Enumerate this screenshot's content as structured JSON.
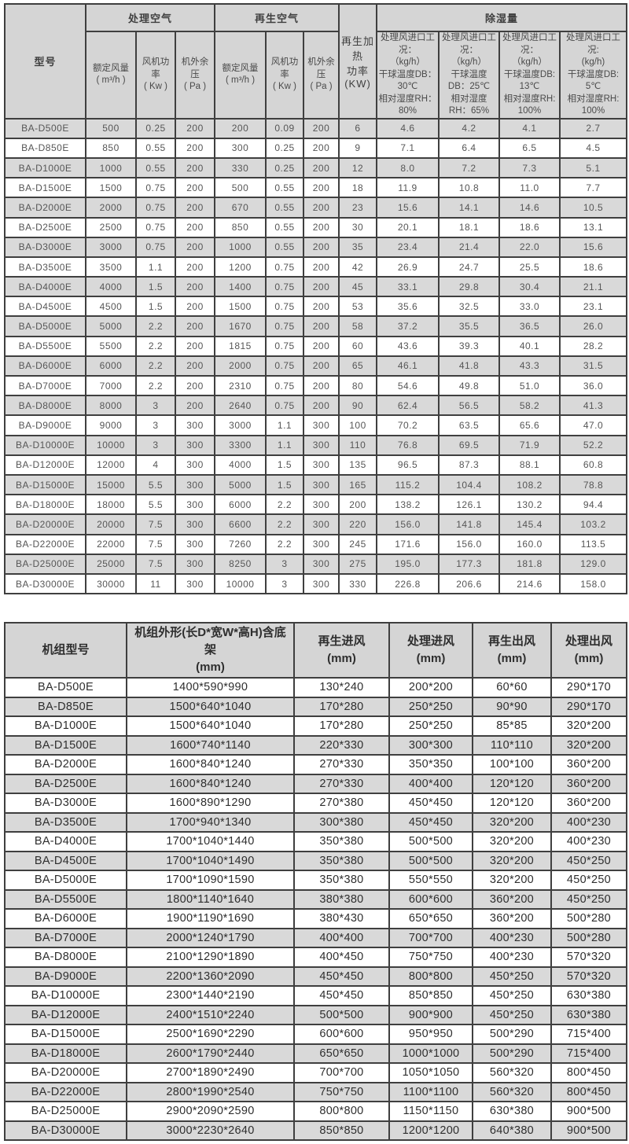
{
  "colors": {
    "header_bg": "#d5d5d5",
    "row_stripe": "#d9d9d9",
    "border": "#3f3f3f",
    "text_primary": "#2e2e2e",
    "text_secondary": "#565656"
  },
  "table1": {
    "header": {
      "model": "型号",
      "process_air": "处理空气",
      "regen_air": "再生空气",
      "regen_heating_power": "再生加热\n功率\n(KW)",
      "dehumidification": "除湿量",
      "sub": [
        "额定风量\n( m³/h )",
        "风机功率\n( Kw )",
        "机外余压\n( Pa )",
        "额定风量\n( m³/h )",
        "风机功率\n( Kw )",
        "机外余压\n( Pa )"
      ],
      "conditions": [
        "处理风进口工况：\n（kg/h）\n干球温度DB：30℃\n相对湿度RH：80%",
        "处理风进口工况：\n（kg/h）\n干球温度DB：25℃\n相对湿度RH：65%",
        "处理风进口工况：\n（kg/h）\n干球温度DB: 13℃\n相对湿度RH: 100%",
        "处理风进口工况:\n(kg/h)\n干球温度DB: 5℃\n相对湿度RH: 100%"
      ]
    },
    "rows": [
      [
        "BA-D500E",
        "500",
        "0.25",
        "200",
        "200",
        "0.09",
        "200",
        "6",
        "4.6",
        "4.2",
        "4.1",
        "2.7"
      ],
      [
        "BA-D850E",
        "850",
        "0.55",
        "200",
        "300",
        "0.25",
        "200",
        "9",
        "7.1",
        "6.4",
        "6.5",
        "4.5"
      ],
      [
        "BA-D1000E",
        "1000",
        "0.55",
        "200",
        "330",
        "0.25",
        "200",
        "12",
        "8.0",
        "7.2",
        "7.3",
        "5.1"
      ],
      [
        "BA-D1500E",
        "1500",
        "0.75",
        "200",
        "500",
        "0.55",
        "200",
        "18",
        "11.9",
        "10.8",
        "11.0",
        "7.7"
      ],
      [
        "BA-D2000E",
        "2000",
        "0.75",
        "200",
        "670",
        "0.55",
        "200",
        "23",
        "15.6",
        "14.1",
        "14.6",
        "10.5"
      ],
      [
        "BA-D2500E",
        "2500",
        "0.75",
        "200",
        "850",
        "0.55",
        "200",
        "30",
        "20.1",
        "18.1",
        "18.6",
        "13.1"
      ],
      [
        "BA-D3000E",
        "3000",
        "0.75",
        "200",
        "1000",
        "0.55",
        "200",
        "35",
        "23.4",
        "21.4",
        "22.0",
        "15.6"
      ],
      [
        "BA-D3500E",
        "3500",
        "1.1",
        "200",
        "1200",
        "0.75",
        "200",
        "42",
        "26.9",
        "24.7",
        "25.5",
        "18.6"
      ],
      [
        "BA-D4000E",
        "4000",
        "1.5",
        "200",
        "1400",
        "0.75",
        "200",
        "45",
        "33.1",
        "29.8",
        "30.4",
        "21.1"
      ],
      [
        "BA-D4500E",
        "4500",
        "1.5",
        "200",
        "1500",
        "0.75",
        "200",
        "53",
        "35.6",
        "32.5",
        "33.0",
        "23.1"
      ],
      [
        "BA-D5000E",
        "5000",
        "2.2",
        "200",
        "1670",
        "0.75",
        "200",
        "58",
        "37.2",
        "35.5",
        "36.5",
        "26.0"
      ],
      [
        "BA-D5500E",
        "5500",
        "2.2",
        "200",
        "1815",
        "0.75",
        "200",
        "60",
        "43.6",
        "39.3",
        "40.1",
        "28.2"
      ],
      [
        "BA-D6000E",
        "6000",
        "2.2",
        "200",
        "2000",
        "0.75",
        "200",
        "65",
        "46.1",
        "41.8",
        "43.3",
        "31.5"
      ],
      [
        "BA-D7000E",
        "7000",
        "2.2",
        "200",
        "2310",
        "0.75",
        "200",
        "80",
        "54.6",
        "49.8",
        "51.0",
        "36.0"
      ],
      [
        "BA-D8000E",
        "8000",
        "3",
        "200",
        "2640",
        "0.75",
        "200",
        "90",
        "62.4",
        "56.5",
        "58.2",
        "41.3"
      ],
      [
        "BA-D9000E",
        "9000",
        "3",
        "300",
        "3000",
        "1.1",
        "300",
        "100",
        "70.2",
        "63.5",
        "65.6",
        "47.0"
      ],
      [
        "BA-D10000E",
        "10000",
        "3",
        "300",
        "3300",
        "1.1",
        "300",
        "110",
        "76.8",
        "69.5",
        "71.9",
        "52.2"
      ],
      [
        "BA-D12000E",
        "12000",
        "4",
        "300",
        "4000",
        "1.5",
        "300",
        "135",
        "96.5",
        "87.3",
        "88.1",
        "60.8"
      ],
      [
        "BA-D15000E",
        "15000",
        "5.5",
        "300",
        "5000",
        "1.5",
        "300",
        "165",
        "115.2",
        "104.4",
        "108.2",
        "78.8"
      ],
      [
        "BA-D18000E",
        "18000",
        "5.5",
        "300",
        "6000",
        "2.2",
        "300",
        "200",
        "138.2",
        "126.1",
        "130.2",
        "94.4"
      ],
      [
        "BA-D20000E",
        "20000",
        "7.5",
        "300",
        "6600",
        "2.2",
        "300",
        "220",
        "156.0",
        "141.8",
        "145.4",
        "103.2"
      ],
      [
        "BA-D22000E",
        "22000",
        "7.5",
        "300",
        "7260",
        "2.2",
        "300",
        "245",
        "171.6",
        "156.0",
        "160.0",
        "113.5"
      ],
      [
        "BA-D25000E",
        "25000",
        "7.5",
        "300",
        "8250",
        "3",
        "300",
        "275",
        "195.0",
        "177.3",
        "181.8",
        "129.0"
      ],
      [
        "BA-D30000E",
        "30000",
        "11",
        "300",
        "10000",
        "3",
        "300",
        "330",
        "226.8",
        "206.6",
        "214.6",
        "158.0"
      ]
    ]
  },
  "table2": {
    "header": [
      "机组型号",
      "机组外形(长D*宽W*高H)含底架\n(mm)",
      "再生进风\n(mm)",
      "处理进风\n(mm)",
      "再生出风\n(mm)",
      "处理出风\n(mm)"
    ],
    "rows": [
      [
        "BA-D500E",
        "1400*590*990",
        "130*240",
        "200*200",
        "60*60",
        "290*170"
      ],
      [
        "BA-D850E",
        "1500*640*1040",
        "170*280",
        "250*250",
        "90*90",
        "290*170"
      ],
      [
        "BA-D1000E",
        "1500*640*1040",
        "170*280",
        "250*250",
        "85*85",
        "320*200"
      ],
      [
        "BA-D1500E",
        "1600*740*1140",
        "220*330",
        "300*300",
        "110*110",
        "320*200"
      ],
      [
        "BA-D2000E",
        "1600*840*1240",
        "270*330",
        "350*350",
        "100*100",
        "360*200"
      ],
      [
        "BA-D2500E",
        "1600*840*1240",
        "270*330",
        "400*400",
        "120*120",
        "360*200"
      ],
      [
        "BA-D3000E",
        "1600*890*1290",
        "270*380",
        "450*450",
        "120*120",
        "360*200"
      ],
      [
        "BA-D3500E",
        "1700*940*1340",
        "300*380",
        "450*450",
        "320*200",
        "400*230"
      ],
      [
        "BA-D4000E",
        "1700*1040*1440",
        "350*380",
        "500*500",
        "320*200",
        "400*230"
      ],
      [
        "BA-D4500E",
        "1700*1040*1490",
        "350*380",
        "500*500",
        "320*200",
        "450*250"
      ],
      [
        "BA-D5000E",
        "1700*1090*1590",
        "350*380",
        "550*550",
        "320*200",
        "450*250"
      ],
      [
        "BA-D5500E",
        "1800*1140*1640",
        "380*380",
        "600*600",
        "360*200",
        "450*250"
      ],
      [
        "BA-D6000E",
        "1900*1190*1690",
        "380*430",
        "650*650",
        "360*200",
        "500*280"
      ],
      [
        "BA-D7000E",
        "2000*1240*1790",
        "400*400",
        "700*700",
        "400*230",
        "500*280"
      ],
      [
        "BA-D8000E",
        "2100*1290*1890",
        "400*450",
        "750*750",
        "400*230",
        "570*320"
      ],
      [
        "BA-D9000E",
        "2200*1360*2090",
        "450*450",
        "800*800",
        "450*250",
        "570*320"
      ],
      [
        "BA-D10000E",
        "2300*1440*2190",
        "450*450",
        "850*850",
        "450*250",
        "630*380"
      ],
      [
        "BA-D12000E",
        "2400*1510*2240",
        "500*500",
        "900*900",
        "450*250",
        "630*380"
      ],
      [
        "BA-D15000E",
        "2500*1690*2290",
        "600*600",
        "950*950",
        "500*290",
        "715*400"
      ],
      [
        "BA-D18000E",
        "2600*1790*2440",
        "650*650",
        "1000*1000",
        "500*290",
        "715*400"
      ],
      [
        "BA-D20000E",
        "2700*1890*2490",
        "700*700",
        "1050*1050",
        "560*320",
        "800*450"
      ],
      [
        "BA-D22000E",
        "2800*1990*2540",
        "750*750",
        "1100*1100",
        "560*320",
        "800*450"
      ],
      [
        "BA-D25000E",
        "2900*2090*2590",
        "800*800",
        "1150*1150",
        "630*380",
        "900*500"
      ],
      [
        "BA-D30000E",
        "3000*2230*2640",
        "850*850",
        "1200*1200",
        "640*380",
        "900*500"
      ]
    ]
  }
}
